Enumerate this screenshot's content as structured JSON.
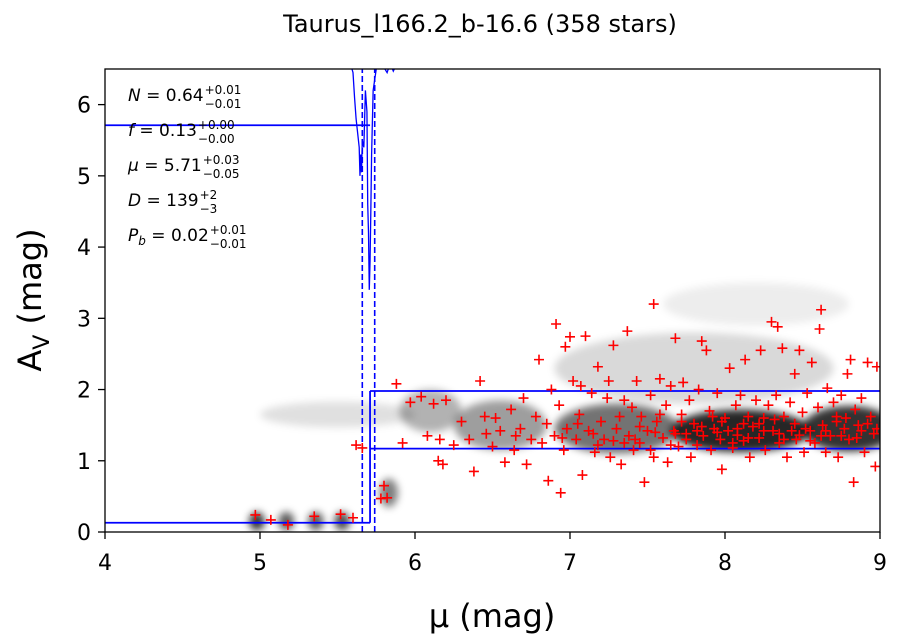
{
  "chart_data": {
    "type": "scatter",
    "title": "Taurus_l166.2_b-16.6 (358 stars)",
    "xlabel": "μ (mag)",
    "ylabel_main": "A",
    "ylabel_sub": "V",
    "ylabel_unit": " (mag)",
    "xlim": [
      4,
      9
    ],
    "ylim": [
      0,
      6.5
    ],
    "xticks": [
      4,
      5,
      6,
      7,
      8,
      9
    ],
    "yticks": [
      0,
      1,
      2,
      3,
      4,
      5,
      6
    ],
    "grid": false,
    "annotations": [
      {
        "name": "N",
        "value": "0.64",
        "plus": "+0.01",
        "minus": "−0.01"
      },
      {
        "name": "f",
        "value": "0.13",
        "plus": "+0.00",
        "minus": "−0.00"
      },
      {
        "name": "μ",
        "value": "5.71",
        "plus": "+0.03",
        "minus": "−0.05"
      },
      {
        "name": "D",
        "value": "139",
        "plus": "+2",
        "minus": "−3"
      },
      {
        "name": "P",
        "sub": "b",
        "value": "0.02",
        "plus": "+0.01",
        "minus": "−0.01"
      }
    ],
    "model": {
      "color": "#0000ff",
      "foreground_extinction": 0.13,
      "cloud_distance_modulus": 5.71,
      "background_band_low": 1.17,
      "background_band_high": 1.98,
      "f_level": 5.71,
      "dashed_x": [
        5.66,
        5.74
      ]
    },
    "density_blobs": [
      {
        "x": 4.98,
        "y": 0.15,
        "sx": 0.05,
        "sy": 0.13,
        "a": 0.8
      },
      {
        "x": 5.17,
        "y": 0.15,
        "sx": 0.05,
        "sy": 0.13,
        "a": 0.65
      },
      {
        "x": 5.36,
        "y": 0.15,
        "sx": 0.05,
        "sy": 0.13,
        "a": 0.65
      },
      {
        "x": 5.53,
        "y": 0.15,
        "sx": 0.05,
        "sy": 0.13,
        "a": 0.7
      },
      {
        "x": 5.83,
        "y": 0.55,
        "sx": 0.06,
        "sy": 0.2,
        "a": 0.5
      },
      {
        "x": 5.5,
        "y": 1.65,
        "sx": 0.5,
        "sy": 0.18,
        "a": 0.12
      },
      {
        "x": 6.1,
        "y": 1.7,
        "sx": 0.2,
        "sy": 0.3,
        "a": 0.3
      },
      {
        "x": 6.55,
        "y": 1.5,
        "sx": 0.3,
        "sy": 0.35,
        "a": 0.38
      },
      {
        "x": 7.3,
        "y": 1.45,
        "sx": 0.4,
        "sy": 0.35,
        "a": 0.55
      },
      {
        "x": 8.1,
        "y": 1.42,
        "sx": 0.45,
        "sy": 0.3,
        "a": 0.85
      },
      {
        "x": 8.8,
        "y": 1.45,
        "sx": 0.3,
        "sy": 0.32,
        "a": 0.8
      },
      {
        "x": 7.8,
        "y": 2.3,
        "sx": 0.9,
        "sy": 0.5,
        "a": 0.15
      },
      {
        "x": 8.2,
        "y": 3.2,
        "sx": 0.6,
        "sy": 0.3,
        "a": 0.07
      }
    ],
    "points": [
      [
        4.97,
        0.24
      ],
      [
        5.07,
        0.17
      ],
      [
        5.18,
        0.1
      ],
      [
        5.35,
        0.22
      ],
      [
        5.52,
        0.25
      ],
      [
        5.6,
        0.2
      ],
      [
        5.62,
        1.22
      ],
      [
        5.66,
        1.18
      ],
      [
        5.78,
        0.47
      ],
      [
        5.8,
        0.65
      ],
      [
        5.82,
        0.48
      ],
      [
        5.88,
        2.08
      ],
      [
        5.92,
        1.25
      ],
      [
        5.97,
        1.82
      ],
      [
        6.04,
        1.9
      ],
      [
        6.08,
        1.35
      ],
      [
        6.12,
        1.8
      ],
      [
        6.16,
        1.3
      ],
      [
        6.15,
        1.0
      ],
      [
        6.18,
        0.95
      ],
      [
        6.2,
        1.85
      ],
      [
        6.25,
        1.22
      ],
      [
        6.3,
        1.55
      ],
      [
        6.35,
        1.3
      ],
      [
        6.38,
        0.85
      ],
      [
        6.42,
        2.12
      ],
      [
        6.46,
        1.38
      ],
      [
        6.5,
        1.2
      ],
      [
        6.52,
        1.6
      ],
      [
        6.55,
        1.42
      ],
      [
        6.58,
        0.98
      ],
      [
        6.62,
        1.72
      ],
      [
        6.64,
        1.15
      ],
      [
        6.68,
        1.45
      ],
      [
        6.7,
        1.88
      ],
      [
        6.72,
        0.95
      ],
      [
        6.75,
        1.3
      ],
      [
        6.78,
        1.62
      ],
      [
        6.8,
        2.42
      ],
      [
        6.82,
        1.25
      ],
      [
        6.85,
        1.52
      ],
      [
        6.86,
        0.72
      ],
      [
        6.88,
        2.0
      ],
      [
        6.9,
        1.35
      ],
      [
        6.91,
        2.92
      ],
      [
        6.93,
        1.78
      ],
      [
        6.94,
        0.55
      ],
      [
        6.96,
        1.15
      ],
      [
        6.97,
        2.6
      ],
      [
        6.98,
        1.45
      ],
      [
        7.0,
        2.74
      ],
      [
        7.02,
        2.12
      ],
      [
        7.04,
        1.3
      ],
      [
        7.06,
        1.65
      ],
      [
        7.07,
        2.05
      ],
      [
        7.08,
        0.8
      ],
      [
        7.1,
        2.75
      ],
      [
        7.12,
        1.42
      ],
      [
        7.14,
        1.95
      ],
      [
        7.16,
        1.12
      ],
      [
        7.18,
        2.32
      ],
      [
        7.2,
        1.55
      ],
      [
        7.22,
        1.3
      ],
      [
        7.24,
        1.88
      ],
      [
        7.25,
        2.12
      ],
      [
        7.26,
        1.05
      ],
      [
        7.28,
        2.62
      ],
      [
        7.3,
        1.45
      ],
      [
        7.32,
        1.62
      ],
      [
        7.33,
        0.95
      ],
      [
        7.35,
        1.85
      ],
      [
        7.37,
        2.82
      ],
      [
        7.38,
        1.35
      ],
      [
        7.4,
        1.75
      ],
      [
        7.41,
        1.15
      ],
      [
        7.43,
        2.12
      ],
      [
        7.45,
        1.25
      ],
      [
        7.46,
        1.62
      ],
      [
        7.48,
        0.7
      ],
      [
        7.5,
        1.42
      ],
      [
        7.52,
        1.92
      ],
      [
        7.54,
        1.05
      ],
      [
        7.54,
        3.2
      ],
      [
        7.56,
        1.55
      ],
      [
        7.58,
        2.15
      ],
      [
        7.6,
        1.32
      ],
      [
        7.62,
        1.78
      ],
      [
        7.63,
        0.98
      ],
      [
        7.65,
        2.05
      ],
      [
        7.67,
        1.42
      ],
      [
        7.68,
        2.72
      ],
      [
        7.7,
        1.2
      ],
      [
        7.72,
        1.65
      ],
      [
        7.73,
        2.1
      ],
      [
        7.75,
        1.38
      ],
      [
        7.77,
        1.85
      ],
      [
        7.78,
        1.05
      ],
      [
        7.8,
        1.52
      ],
      [
        7.82,
        1.22
      ],
      [
        7.83,
        2.0
      ],
      [
        7.85,
        2.68
      ],
      [
        7.86,
        1.35
      ],
      [
        7.88,
        2.55
      ],
      [
        7.9,
        1.7
      ],
      [
        7.91,
        1.15
      ],
      [
        7.93,
        1.45
      ],
      [
        7.95,
        1.95
      ],
      [
        7.97,
        1.3
      ],
      [
        7.98,
        0.88
      ],
      [
        8.0,
        1.6
      ],
      [
        8.02,
        1.42
      ],
      [
        8.03,
        2.3
      ],
      [
        8.05,
        1.18
      ],
      [
        8.07,
        1.78
      ],
      [
        8.08,
        1.45
      ],
      [
        8.1,
        1.92
      ],
      [
        8.12,
        1.28
      ],
      [
        8.13,
        2.42
      ],
      [
        8.15,
        1.62
      ],
      [
        8.16,
        1.05
      ],
      [
        8.18,
        1.48
      ],
      [
        8.2,
        1.85
      ],
      [
        8.22,
        1.32
      ],
      [
        8.23,
        2.55
      ],
      [
        8.25,
        1.6
      ],
      [
        8.26,
        1.15
      ],
      [
        8.28,
        1.78
      ],
      [
        8.3,
        2.95
      ],
      [
        8.31,
        1.42
      ],
      [
        8.33,
        1.92
      ],
      [
        8.34,
        2.88
      ],
      [
        8.35,
        1.25
      ],
      [
        8.37,
        2.58
      ],
      [
        8.38,
        1.62
      ],
      [
        8.4,
        1.05
      ],
      [
        8.42,
        1.82
      ],
      [
        8.43,
        1.42
      ],
      [
        8.45,
        2.22
      ],
      [
        8.46,
        1.3
      ],
      [
        8.48,
        2.55
      ],
      [
        8.5,
        1.68
      ],
      [
        8.51,
        1.12
      ],
      [
        8.53,
        1.95
      ],
      [
        8.55,
        1.42
      ],
      [
        8.56,
        2.38
      ],
      [
        8.58,
        1.25
      ],
      [
        8.6,
        1.75
      ],
      [
        8.61,
        2.85
      ],
      [
        8.62,
        3.12
      ],
      [
        8.63,
        1.5
      ],
      [
        8.65,
        1.12
      ],
      [
        8.66,
        2.02
      ],
      [
        8.68,
        1.35
      ],
      [
        8.7,
        1.82
      ],
      [
        8.72,
        1.62
      ],
      [
        8.73,
        1.05
      ],
      [
        8.75,
        1.92
      ],
      [
        8.77,
        1.45
      ],
      [
        8.79,
        2.22
      ],
      [
        8.8,
        1.3
      ],
      [
        8.81,
        2.42
      ],
      [
        8.83,
        0.7
      ],
      [
        8.84,
        1.72
      ],
      [
        8.86,
        1.5
      ],
      [
        8.88,
        1.88
      ],
      [
        8.9,
        1.12
      ],
      [
        8.92,
        2.38
      ],
      [
        8.94,
        1.62
      ],
      [
        8.96,
        1.38
      ],
      [
        8.97,
        0.92
      ],
      [
        8.98,
        2.32
      ],
      [
        7.15,
        1.38
      ],
      [
        7.35,
        1.25
      ],
      [
        7.55,
        1.4
      ],
      [
        7.75,
        1.3
      ],
      [
        7.95,
        1.4
      ],
      [
        8.15,
        1.32
      ],
      [
        8.35,
        1.38
      ],
      [
        8.55,
        1.28
      ],
      [
        8.75,
        1.35
      ],
      [
        7.45,
        1.48
      ],
      [
        7.65,
        1.22
      ],
      [
        7.85,
        1.48
      ],
      [
        8.05,
        1.25
      ],
      [
        8.25,
        1.42
      ],
      [
        8.45,
        1.52
      ],
      [
        8.65,
        1.42
      ],
      [
        8.85,
        1.32
      ],
      [
        7.28,
        1.28
      ],
      [
        7.68,
        1.38
      ],
      [
        8.08,
        1.36
      ],
      [
        8.48,
        1.36
      ],
      [
        8.88,
        1.42
      ],
      [
        6.95,
        1.32
      ],
      [
        7.05,
        1.52
      ],
      [
        6.65,
        1.35
      ],
      [
        6.45,
        1.62
      ],
      [
        7.92,
        1.62
      ],
      [
        8.32,
        1.58
      ],
      [
        8.72,
        1.55
      ],
      [
        7.52,
        1.15
      ],
      [
        7.72,
        1.55
      ],
      [
        8.12,
        1.52
      ],
      [
        8.52,
        1.45
      ],
      [
        8.92,
        1.52
      ],
      [
        7.18,
        1.22
      ],
      [
        7.58,
        1.65
      ],
      [
        7.98,
        1.55
      ],
      [
        8.38,
        1.3
      ],
      [
        8.78,
        1.6
      ],
      [
        7.42,
        1.3
      ],
      [
        7.82,
        1.42
      ],
      [
        8.22,
        1.52
      ],
      [
        8.62,
        1.35
      ],
      [
        8.98,
        1.45
      ]
    ]
  }
}
